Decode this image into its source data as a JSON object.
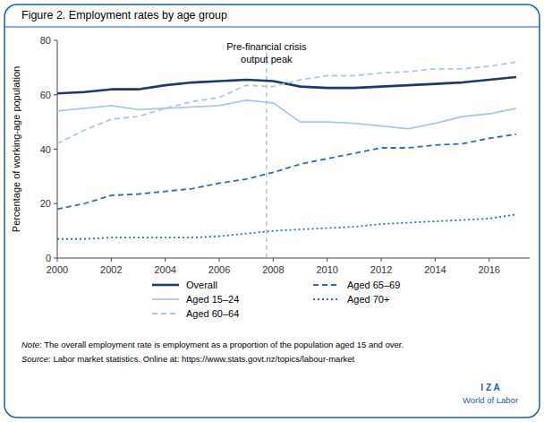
{
  "chart_data": {
    "type": "line",
    "title": "Figure 2. Employment rates by age group",
    "y_label": "Percentage of working-age population",
    "xlim": [
      2000,
      2017.5
    ],
    "ylim": [
      0,
      80
    ],
    "xticks": [
      2000,
      2002,
      2004,
      2006,
      2008,
      2010,
      2012,
      2014,
      2016
    ],
    "yticks": [
      0,
      20,
      40,
      60,
      80
    ],
    "grid": false,
    "x": [
      2000,
      2001,
      2002,
      2003,
      2004,
      2005,
      2006,
      2007,
      2008,
      2009,
      2010,
      2011,
      2012,
      2013,
      2014,
      2015,
      2016,
      2017
    ],
    "series": [
      {
        "name": "Overall",
        "color": "#1a3a6b",
        "line_style": "solid",
        "values": [
          60.5,
          61.0,
          62.0,
          62.0,
          63.5,
          64.5,
          65.0,
          65.5,
          65.0,
          63.0,
          62.5,
          62.5,
          63.0,
          63.5,
          64.0,
          64.5,
          65.5,
          66.5
        ]
      },
      {
        "name": "Aged 15–24",
        "color": "#a8c8e0",
        "line_style": "solid",
        "values": [
          54.0,
          55.0,
          56.0,
          54.5,
          55.0,
          55.5,
          56.0,
          58.0,
          57.0,
          50.0,
          50.0,
          49.5,
          48.5,
          47.5,
          49.5,
          52.0,
          53.0,
          55.0
        ]
      },
      {
        "name": "Aged 60–64",
        "color": "#a8c8e0",
        "line_style": "dashed",
        "values": [
          42.0,
          47.0,
          51.0,
          52.0,
          55.0,
          57.5,
          59.0,
          63.5,
          63.0,
          65.5,
          67.0,
          67.0,
          68.0,
          68.5,
          69.5,
          69.5,
          70.5,
          72.0
        ]
      },
      {
        "name": "Aged 65–69",
        "color": "#2a6fad",
        "line_style": "dashed",
        "values": [
          18.0,
          20.0,
          23.0,
          23.5,
          24.5,
          25.5,
          27.5,
          29.0,
          31.5,
          34.5,
          36.5,
          38.5,
          40.5,
          40.5,
          41.5,
          42.0,
          44.0,
          45.5
        ]
      },
      {
        "name": "Aged 70+",
        "color": "#2a6fad",
        "line_style": "dotted",
        "values": [
          7.0,
          7.0,
          7.5,
          7.5,
          7.5,
          7.5,
          8.0,
          9.0,
          10.0,
          10.5,
          11.0,
          11.5,
          12.5,
          13.0,
          13.5,
          14.0,
          14.5,
          16.0
        ]
      }
    ],
    "legend": "bottom",
    "annotations": [
      {
        "type": "vline",
        "x": 2007.75,
        "color": "#7bafd4",
        "lines": [
          "Pre-financial crisis",
          "output peak"
        ]
      }
    ],
    "notes": [
      {
        "label": "Note",
        "text": ": The overall employment rate is employment as a proportion of the population aged 15 and over."
      },
      {
        "label": "Source",
        "text": ": Labor market statistics. Online at: https://www.stats.govt.nz/topics/labour-market"
      }
    ],
    "branding": {
      "lines": [
        "I  Z  A",
        "World of Labor"
      ],
      "color": "#1a5fa8"
    }
  }
}
